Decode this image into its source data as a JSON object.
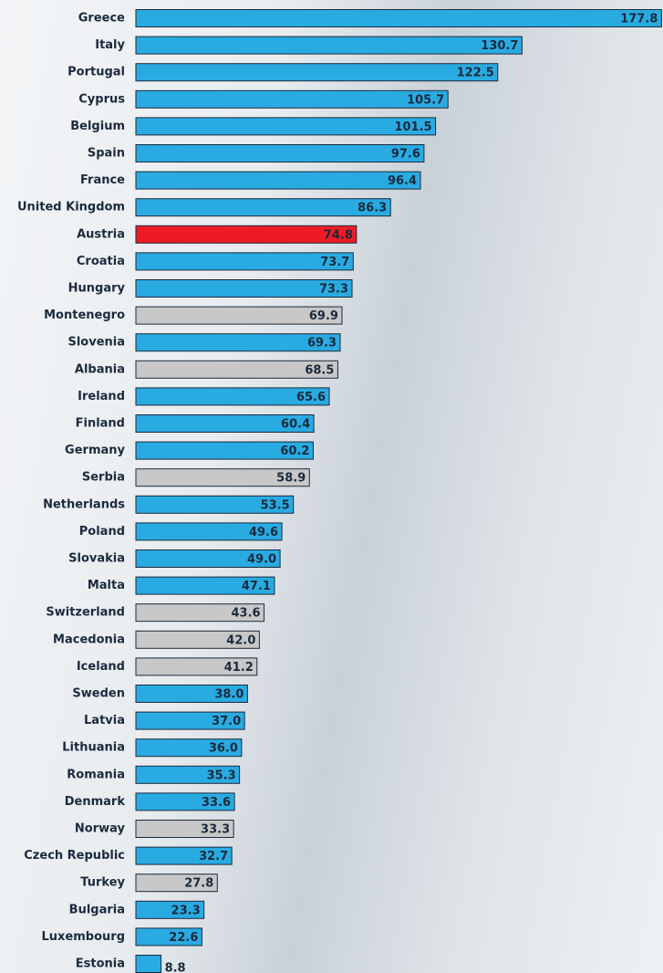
{
  "chart_data": {
    "type": "bar",
    "orientation": "horizontal",
    "categories": [
      "Greece",
      "Italy",
      "Portugal",
      "Cyprus",
      "Belgium",
      "Spain",
      "France",
      "United Kingdom",
      "Austria",
      "Croatia",
      "Hungary",
      "Montenegro",
      "Slovenia",
      "Albania",
      "Ireland",
      "Finland",
      "Germany",
      "Serbia",
      "Netherlands",
      "Poland",
      "Slovakia",
      "Malta",
      "Switzerland",
      "Macedonia",
      "Iceland",
      "Sweden",
      "Latvia",
      "Lithuania",
      "Romania",
      "Denmark",
      "Norway",
      "Czech Republic",
      "Turkey",
      "Bulgaria",
      "Luxembourg",
      "Estonia"
    ],
    "values": [
      177.8,
      130.7,
      122.5,
      105.7,
      101.5,
      97.6,
      96.4,
      86.3,
      74.8,
      73.7,
      73.3,
      69.9,
      69.3,
      68.5,
      65.6,
      60.4,
      60.2,
      58.9,
      53.5,
      49.6,
      49.0,
      47.1,
      43.6,
      42.0,
      41.2,
      38.0,
      37.0,
      36.0,
      35.3,
      33.6,
      33.3,
      32.7,
      27.8,
      23.3,
      22.6,
      8.8
    ],
    "value_labels": [
      "177.8",
      "130.7",
      "122.5",
      "105.7",
      "101.5",
      "97.6",
      "96.4",
      "86.3",
      "74.8",
      "73.7",
      "73.3",
      "69.9",
      "69.3",
      "68.5",
      "65.6",
      "60.4",
      "60.2",
      "58.9",
      "53.5",
      "49.6",
      "49.0",
      "47.1",
      "43.6",
      "42.0",
      "41.2",
      "38.0",
      "37.0",
      "36.0",
      "35.3",
      "33.6",
      "33.3",
      "32.7",
      "27.8",
      "23.3",
      "22.6",
      "8.8"
    ],
    "colors": [
      "#29abe2",
      "#29abe2",
      "#29abe2",
      "#29abe2",
      "#29abe2",
      "#29abe2",
      "#29abe2",
      "#29abe2",
      "#ed1c24",
      "#29abe2",
      "#29abe2",
      "#c8c8c8",
      "#29abe2",
      "#c8c8c8",
      "#29abe2",
      "#29abe2",
      "#29abe2",
      "#c8c8c8",
      "#29abe2",
      "#29abe2",
      "#29abe2",
      "#29abe2",
      "#c8c8c8",
      "#c8c8c8",
      "#c8c8c8",
      "#29abe2",
      "#29abe2",
      "#29abe2",
      "#29abe2",
      "#29abe2",
      "#c8c8c8",
      "#29abe2",
      "#c8c8c8",
      "#29abe2",
      "#29abe2",
      "#29abe2"
    ],
    "xlim": [
      0,
      178
    ]
  }
}
